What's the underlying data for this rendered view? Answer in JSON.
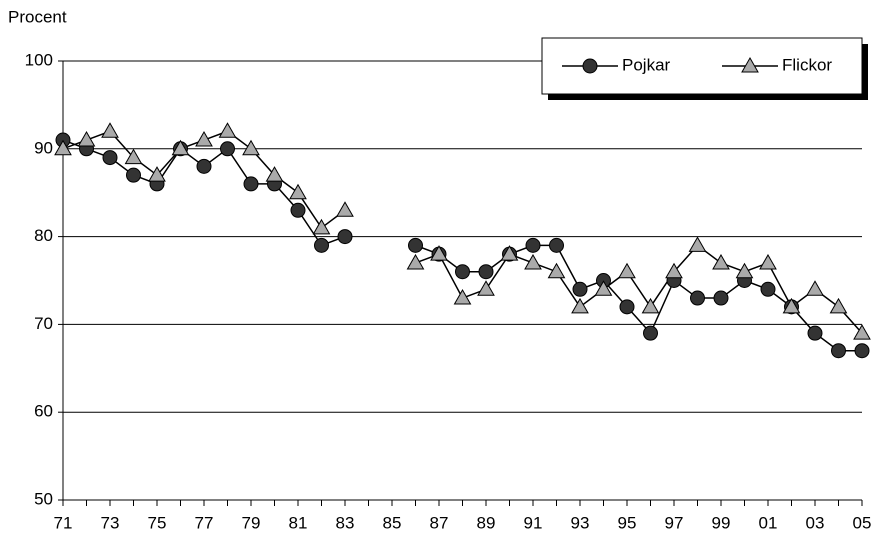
{
  "chart_data": {
    "type": "line",
    "y_label": "Procent",
    "categories": [
      "71",
      null,
      "73",
      null,
      "75",
      null,
      "77",
      null,
      "79",
      null,
      "81",
      null,
      "83",
      null,
      "85",
      null,
      "87",
      null,
      "89",
      null,
      "91",
      null,
      "93",
      null,
      "95",
      null,
      "97",
      null,
      "99",
      null,
      "01",
      null,
      "03",
      null,
      "05"
    ],
    "series": [
      {
        "name": "Pojkar",
        "color": "#333333",
        "marker": "circle",
        "values": [
          91,
          90,
          89,
          87,
          86,
          90,
          88,
          90,
          86,
          86,
          83,
          79,
          80,
          null,
          null,
          79,
          78,
          76,
          76,
          78,
          79,
          79,
          74,
          75,
          72,
          69,
          75,
          73,
          73,
          75,
          74,
          72,
          69,
          67,
          67
        ]
      },
      {
        "name": "Flickor",
        "color": "#aaaaaa",
        "marker": "triangle",
        "values": [
          90,
          91,
          92,
          89,
          87,
          90,
          91,
          92,
          90,
          87,
          85,
          81,
          83,
          null,
          null,
          77,
          78,
          73,
          74,
          78,
          77,
          76,
          72,
          74,
          76,
          72,
          76,
          79,
          77,
          76,
          77,
          72,
          74,
          72,
          69
        ]
      }
    ],
    "ylim": [
      50,
      100
    ],
    "yticks": [
      50,
      60,
      70,
      80,
      90,
      100
    ],
    "grid": true,
    "legend": "upper right"
  }
}
